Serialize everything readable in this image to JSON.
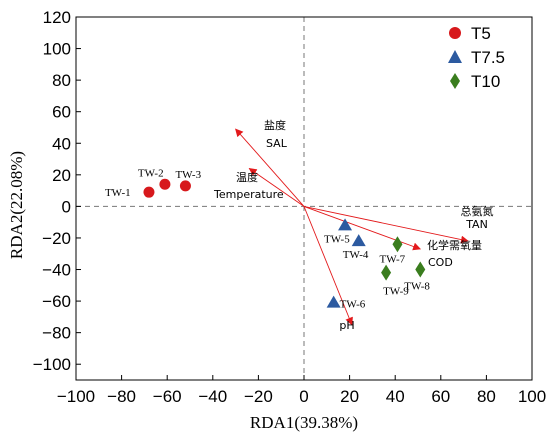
{
  "chart_data": {
    "type": "scatter",
    "xlabel": "RDA1(39.38%)",
    "ylabel": "RDA2(22.08%)",
    "xlim": [
      -100,
      100
    ],
    "ylim": [
      -110,
      120
    ],
    "xticks": [
      -100,
      -80,
      -60,
      -40,
      -20,
      0,
      20,
      40,
      60,
      80,
      100
    ],
    "yticks": [
      -100,
      -80,
      -60,
      -40,
      -20,
      0,
      20,
      40,
      60,
      80,
      100,
      120
    ],
    "grid": false,
    "reference_lines": {
      "x": 0,
      "y": 0,
      "style": "dashed"
    },
    "legend": {
      "placement": "top-right"
    },
    "series": [
      {
        "name": "T5",
        "marker": "circle",
        "color": "#d7191c",
        "points": [
          {
            "label": "TW-1",
            "x": -68,
            "y": 9
          },
          {
            "label": "TW-2",
            "x": -61,
            "y": 14
          },
          {
            "label": "TW-3",
            "x": -52,
            "y": 13
          }
        ]
      },
      {
        "name": "T7.5",
        "marker": "triangle",
        "color": "#2c5aa0",
        "points": [
          {
            "label": "TW-4",
            "x": 24,
            "y": -22
          },
          {
            "label": "TW-5",
            "x": 18,
            "y": -12
          },
          {
            "label": "TW-6",
            "x": 13,
            "y": -61
          }
        ]
      },
      {
        "name": "T10",
        "marker": "diamond",
        "color": "#3a7d1e",
        "points": [
          {
            "label": "TW-7",
            "x": 41,
            "y": -24
          },
          {
            "label": "TW-8",
            "x": 51,
            "y": -40
          },
          {
            "label": "TW-9",
            "x": 36,
            "y": -42
          }
        ]
      }
    ],
    "vectors": {
      "color": "#e31a1c",
      "items": [
        {
          "label_cn": "盐度",
          "label_en": "SAL",
          "x": -30,
          "y": 49
        },
        {
          "label_cn": "温度",
          "label_en": "Temperature",
          "x": -24,
          "y": 24
        },
        {
          "label_cn": "总氨氮",
          "label_en": "TAN",
          "x": 72,
          "y": -22
        },
        {
          "label_cn": "化学需氧量",
          "label_en": "COD",
          "x": 51,
          "y": -27
        },
        {
          "label_cn": "",
          "label_en": "pH",
          "x": 21,
          "y": -75
        }
      ]
    }
  }
}
